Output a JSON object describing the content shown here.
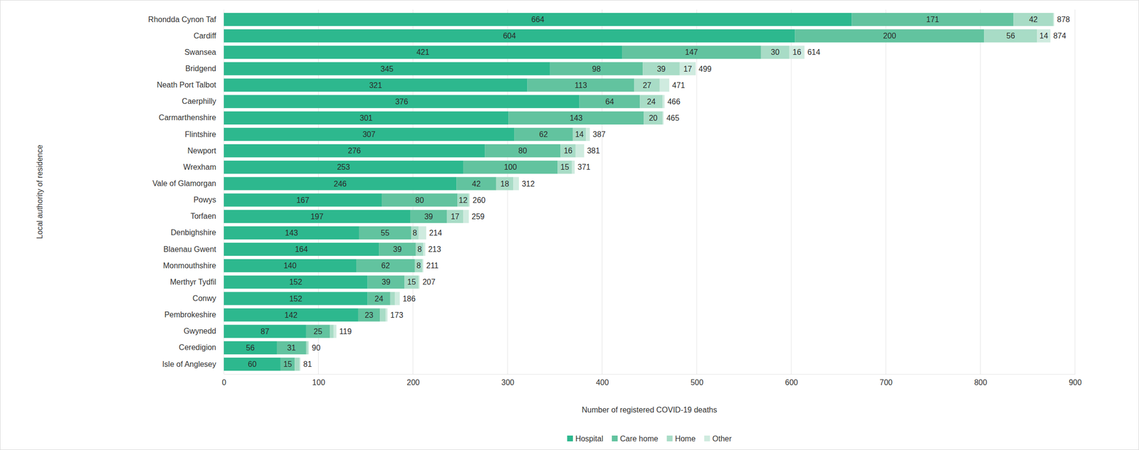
{
  "chart_data": {
    "type": "bar",
    "orientation": "horizontal",
    "stacked": true,
    "data_labels": true,
    "grid": true,
    "x_label": "Number of registered COVID-19 deaths",
    "y_label": "Local authority of residence",
    "categories": [
      "Rhondda Cynon Taf",
      "Cardiff",
      "Swansea",
      "Bridgend",
      "Neath Port Talbot",
      "Caerphilly",
      "Carmarthenshire",
      "Flintshire",
      "Newport",
      "Wrexham",
      "Vale of Glamorgan",
      "Powys",
      "Torfaen",
      "Denbighshire",
      "Blaenau Gwent",
      "Monmouthshire",
      "Merthyr Tydfil",
      "Conwy",
      "Pembrokeshire",
      "Gwynedd",
      "Ceredigion",
      "Isle of Anglesey"
    ],
    "series": [
      {
        "name": "Hospital",
        "color": "#2db88e",
        "values": [
          664,
          604,
          421,
          345,
          321,
          376,
          301,
          307,
          276,
          253,
          246,
          167,
          197,
          143,
          164,
          140,
          152,
          152,
          142,
          87,
          56,
          60
        ],
        "value_labels": [
          "664",
          "604",
          "421",
          "345",
          "321",
          "376",
          "301",
          "307",
          "276",
          "253",
          "246",
          "167",
          "197",
          "143",
          "164",
          "140",
          "152",
          "152",
          "142",
          "87",
          "56",
          "60"
        ]
      },
      {
        "name": "Care home",
        "color": "#62c39f",
        "values": [
          171,
          200,
          147,
          98,
          113,
          64,
          143,
          62,
          80,
          100,
          42,
          80,
          39,
          55,
          39,
          62,
          39,
          24,
          23,
          25,
          31,
          15
        ],
        "value_labels": [
          "171",
          "200",
          "147",
          "98",
          "113",
          "64",
          "143",
          "62",
          "80",
          "100",
          "42",
          "80",
          "39",
          "55",
          "39",
          "62",
          "39",
          "24",
          "23",
          "25",
          "31",
          "15"
        ]
      },
      {
        "name": "Home",
        "color": "#a8dcc6",
        "values": [
          42,
          56,
          30,
          39,
          27,
          24,
          20,
          14,
          16,
          15,
          18,
          12,
          17,
          8,
          8,
          8,
          15,
          5,
          6,
          4,
          2,
          5
        ],
        "value_labels": [
          "42",
          "56",
          "30",
          "39",
          "27",
          "24",
          "20",
          "14",
          "16",
          "15",
          "18",
          "12",
          "17",
          "8",
          "8",
          "8",
          "15",
          null,
          null,
          null,
          null,
          null
        ]
      },
      {
        "name": "Other",
        "color": "#cfebdf",
        "values": [
          1,
          14,
          16,
          17,
          10,
          2,
          1,
          4,
          9,
          3,
          6,
          1,
          6,
          8,
          2,
          1,
          1,
          5,
          2,
          3,
          1,
          1
        ],
        "value_labels": [
          null,
          "14",
          "16",
          "17",
          null,
          null,
          null,
          null,
          null,
          null,
          null,
          null,
          null,
          null,
          null,
          null,
          null,
          null,
          null,
          null,
          null,
          null
        ]
      }
    ],
    "totals": [
      878,
      874,
      614,
      499,
      471,
      466,
      465,
      387,
      381,
      371,
      312,
      260,
      259,
      214,
      213,
      211,
      207,
      186,
      173,
      119,
      90,
      81
    ],
    "xlim": [
      0,
      900
    ],
    "xticks": [
      0,
      100,
      200,
      300,
      400,
      500,
      600,
      700,
      800,
      900
    ],
    "legend": "bottom"
  }
}
